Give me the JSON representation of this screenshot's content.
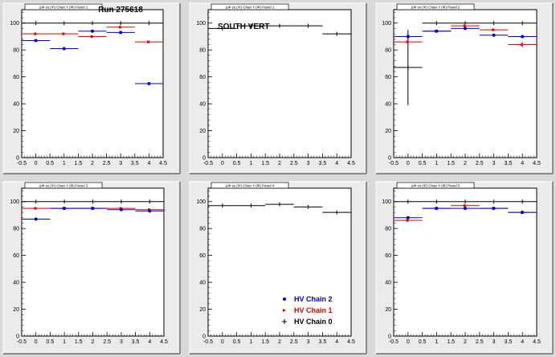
{
  "run_label": "Run 275618",
  "chart_data": [
    {
      "type": "scatter",
      "title": "",
      "header_text": "Run 275618",
      "tab_label": "ΔΦ vs (Ψ) Chan Y (Φ) Panel 1",
      "xlim": [
        -0.5,
        4.5
      ],
      "ylim": [
        0,
        110
      ],
      "xticks": [
        "-0.5",
        "0",
        "0.5",
        "1",
        "1.5",
        "2",
        "2.5",
        "3",
        "3.5",
        "4",
        "4.5"
      ],
      "yticks": [
        "0",
        "20",
        "40",
        "60",
        "80",
        "100"
      ],
      "series": [
        {
          "name": "HV Chain 0",
          "color": "#000000",
          "marker": "plus",
          "points": [
            {
              "x": 0,
              "y": 100,
              "xerr": 0.5,
              "yerr": 0
            },
            {
              "x": 1,
              "y": 100,
              "xerr": 0.5,
              "yerr": 0
            },
            {
              "x": 2,
              "y": 100,
              "xerr": 0.5,
              "yerr": 0
            },
            {
              "x": 3,
              "y": 100,
              "xerr": 0.5,
              "yerr": 0
            },
            {
              "x": 4,
              "y": 100,
              "xerr": 0.5,
              "yerr": 0
            }
          ]
        },
        {
          "name": "HV Chain 1",
          "color": "#e00000",
          "marker": "triangle",
          "points": [
            {
              "x": 0,
              "y": 92,
              "xerr": 0.5,
              "yerr": 1
            },
            {
              "x": 1,
              "y": 92,
              "xerr": 0.5,
              "yerr": 1
            },
            {
              "x": 2,
              "y": 90,
              "xerr": 0.5,
              "yerr": 1
            },
            {
              "x": 3,
              "y": 97,
              "xerr": 0.5,
              "yerr": 1
            },
            {
              "x": 4,
              "y": 86,
              "xerr": 0.5,
              "yerr": 1
            }
          ]
        },
        {
          "name": "HV Chain 2",
          "color": "#0000d0",
          "marker": "circle",
          "points": [
            {
              "x": 0,
              "y": 87,
              "xerr": 0.5,
              "yerr": 1
            },
            {
              "x": 1,
              "y": 81,
              "xerr": 0.5,
              "yerr": 1
            },
            {
              "x": 2,
              "y": 94,
              "xerr": 0.5,
              "yerr": 1
            },
            {
              "x": 3,
              "y": 93,
              "xerr": 0.5,
              "yerr": 1
            },
            {
              "x": 4,
              "y": 55,
              "xerr": 0.5,
              "yerr": 1
            }
          ]
        }
      ]
    },
    {
      "type": "scatter",
      "title": "",
      "header_text": "SOUTH VERT",
      "tab_label": "ΔΦ vs (Ψ) Chan Y (Φ) Panel 1",
      "xlim": [
        -0.5,
        4.5
      ],
      "ylim": [
        0,
        110
      ],
      "xticks": [
        "-0.5",
        "0",
        "0.5",
        "1",
        "1.5",
        "2",
        "2.5",
        "3",
        "3.5",
        "4",
        "4.5"
      ],
      "yticks": [
        "0",
        "20",
        "40",
        "60",
        "80",
        "100"
      ],
      "series": [
        {
          "name": "HV Chain 0",
          "color": "#000000",
          "marker": "plus",
          "points": [
            {
              "x": 0,
              "y": 96,
              "xerr": 0.5,
              "yerr": 0
            },
            {
              "x": 1,
              "y": 98,
              "xerr": 0.5,
              "yerr": 0
            },
            {
              "x": 2,
              "y": 98,
              "xerr": 0.5,
              "yerr": 0
            },
            {
              "x": 3,
              "y": 98,
              "xerr": 0.5,
              "yerr": 0
            },
            {
              "x": 4,
              "y": 92,
              "xerr": 0.5,
              "yerr": 0
            }
          ]
        }
      ]
    },
    {
      "type": "scatter",
      "title": "",
      "header_text": "",
      "tab_label": "ΔΦ vs (Ψ) Chan Y (Φ) Panel 2",
      "xlim": [
        -0.5,
        4.5
      ],
      "ylim": [
        0,
        110
      ],
      "xticks": [
        "-0.5",
        "0",
        "0.5",
        "1",
        "1.5",
        "2",
        "2.5",
        "3",
        "3.5",
        "4",
        "4.5"
      ],
      "yticks": [
        "0",
        "20",
        "40",
        "60",
        "80",
        "100"
      ],
      "series": [
        {
          "name": "HV Chain 0",
          "color": "#000000",
          "marker": "plus",
          "points": [
            {
              "x": 0,
              "y": 67,
              "xerr": 0.5,
              "yerr": 28
            },
            {
              "x": 1,
              "y": 100,
              "xerr": 0.5,
              "yerr": 0
            },
            {
              "x": 2,
              "y": 100,
              "xerr": 0.5,
              "yerr": 0
            },
            {
              "x": 3,
              "y": 100,
              "xerr": 0.5,
              "yerr": 0
            },
            {
              "x": 4,
              "y": 100,
              "xerr": 0.5,
              "yerr": 0
            }
          ]
        },
        {
          "name": "HV Chain 1",
          "color": "#e00000",
          "marker": "triangle",
          "points": [
            {
              "x": 0,
              "y": 86,
              "xerr": 0.5,
              "yerr": 2
            },
            {
              "x": 1,
              "y": 94,
              "xerr": 0.5,
              "yerr": 1
            },
            {
              "x": 2,
              "y": 98,
              "xerr": 0.5,
              "yerr": 1
            },
            {
              "x": 3,
              "y": 95,
              "xerr": 0.5,
              "yerr": 1
            },
            {
              "x": 4,
              "y": 84,
              "xerr": 0.5,
              "yerr": 2
            }
          ]
        },
        {
          "name": "HV Chain 2",
          "color": "#0000d0",
          "marker": "circle",
          "points": [
            {
              "x": 0,
              "y": 90,
              "xerr": 0.5,
              "yerr": 2
            },
            {
              "x": 1,
              "y": 94,
              "xerr": 0.5,
              "yerr": 1
            },
            {
              "x": 2,
              "y": 96,
              "xerr": 0.5,
              "yerr": 1
            },
            {
              "x": 3,
              "y": 91,
              "xerr": 0.5,
              "yerr": 1
            },
            {
              "x": 4,
              "y": 90,
              "xerr": 0.5,
              "yerr": 1
            }
          ]
        }
      ]
    },
    {
      "type": "scatter",
      "title": "",
      "header_text": "",
      "tab_label": "ΔΦ vs (Ψ) Chan Y (Φ) Panel 3",
      "xlim": [
        -0.5,
        4.5
      ],
      "ylim": [
        0,
        110
      ],
      "xticks": [
        "-0.5",
        "0",
        "0.5",
        "1",
        "1.5",
        "2",
        "2.5",
        "3",
        "3.5",
        "4",
        "4.5"
      ],
      "yticks": [
        "0",
        "20",
        "40",
        "60",
        "80",
        "100"
      ],
      "series": [
        {
          "name": "HV Chain 0",
          "color": "#000000",
          "marker": "plus",
          "points": [
            {
              "x": 0,
              "y": 100,
              "xerr": 0.5,
              "yerr": 0
            },
            {
              "x": 1,
              "y": 100,
              "xerr": 0.5,
              "yerr": 0
            },
            {
              "x": 2,
              "y": 100,
              "xerr": 0.5,
              "yerr": 0
            },
            {
              "x": 3,
              "y": 100,
              "xerr": 0.5,
              "yerr": 0
            },
            {
              "x": 4,
              "y": 100,
              "xerr": 0.5,
              "yerr": 0
            }
          ]
        },
        {
          "name": "HV Chain 1",
          "color": "#e00000",
          "marker": "triangle",
          "points": [
            {
              "x": 0,
              "y": 95,
              "xerr": 0.5,
              "yerr": 1
            },
            {
              "x": 1,
              "y": 95,
              "xerr": 0.5,
              "yerr": 1
            },
            {
              "x": 2,
              "y": 95,
              "xerr": 0.5,
              "yerr": 1
            },
            {
              "x": 3,
              "y": 95,
              "xerr": 0.5,
              "yerr": 1
            },
            {
              "x": 4,
              "y": 94,
              "xerr": 0.5,
              "yerr": 1
            }
          ]
        },
        {
          "name": "HV Chain 2",
          "color": "#0000d0",
          "marker": "circle",
          "points": [
            {
              "x": 0,
              "y": 87,
              "xerr": 0.5,
              "yerr": 1
            },
            {
              "x": 1,
              "y": 95,
              "xerr": 0.5,
              "yerr": 1
            },
            {
              "x": 2,
              "y": 95,
              "xerr": 0.5,
              "yerr": 1
            },
            {
              "x": 3,
              "y": 94,
              "xerr": 0.5,
              "yerr": 1
            },
            {
              "x": 4,
              "y": 93,
              "xerr": 0.5,
              "yerr": 1
            }
          ]
        }
      ]
    },
    {
      "type": "scatter",
      "title": "",
      "header_text": "",
      "tab_label": "ΔΦ vs (Ψ) Chan Y (Φ) Panel 4",
      "xlim": [
        -0.5,
        4.5
      ],
      "ylim": [
        0,
        110
      ],
      "xticks": [
        "-0.5",
        "0",
        "0.5",
        "1",
        "1.5",
        "2",
        "2.5",
        "3",
        "3.5",
        "4",
        "4.5"
      ],
      "yticks": [
        "0",
        "20",
        "40",
        "60",
        "80",
        "100"
      ],
      "legend": [
        "HV Chain 2",
        "HV Chain 1",
        "HV Chain 0"
      ],
      "legend_position": "bottom-right",
      "series": [
        {
          "name": "HV Chain 0",
          "color": "#000000",
          "marker": "plus",
          "points": [
            {
              "x": 0,
              "y": 97,
              "xerr": 0.5,
              "yerr": 0
            },
            {
              "x": 1,
              "y": 97,
              "xerr": 0.5,
              "yerr": 0
            },
            {
              "x": 2,
              "y": 98,
              "xerr": 0.5,
              "yerr": 0
            },
            {
              "x": 3,
              "y": 96,
              "xerr": 0.5,
              "yerr": 0
            },
            {
              "x": 4,
              "y": 92,
              "xerr": 0.5,
              "yerr": 0
            }
          ]
        }
      ]
    },
    {
      "type": "scatter",
      "title": "",
      "header_text": "",
      "tab_label": "ΔΦ vs (Ψ) Chan Y (Φ) Panel 5",
      "xlim": [
        -0.5,
        4.5
      ],
      "ylim": [
        0,
        110
      ],
      "xticks": [
        "-0.5",
        "0",
        "0.5",
        "1",
        "1.5",
        "2",
        "2.5",
        "3",
        "3.5",
        "4",
        "4.5"
      ],
      "yticks": [
        "0",
        "20",
        "40",
        "60",
        "80",
        "100"
      ],
      "series": [
        {
          "name": "HV Chain 0",
          "color": "#000000",
          "marker": "plus",
          "points": [
            {
              "x": 0,
              "y": 100,
              "xerr": 0.5,
              "yerr": 0
            },
            {
              "x": 1,
              "y": 100,
              "xerr": 0.5,
              "yerr": 0
            },
            {
              "x": 2,
              "y": 100,
              "xerr": 0.5,
              "yerr": 0
            },
            {
              "x": 3,
              "y": 100,
              "xerr": 0.5,
              "yerr": 0
            },
            {
              "x": 4,
              "y": 100,
              "xerr": 0.5,
              "yerr": 0
            }
          ]
        },
        {
          "name": "HV Chain 1",
          "color": "#e00000",
          "marker": "triangle",
          "points": [
            {
              "x": 0,
              "y": 86,
              "xerr": 0.5,
              "yerr": 1
            },
            {
              "x": 1,
              "y": 95,
              "xerr": 0.5,
              "yerr": 1
            },
            {
              "x": 2,
              "y": 97,
              "xerr": 0.5,
              "yerr": 1
            },
            {
              "x": 3,
              "y": 95,
              "xerr": 0.5,
              "yerr": 1
            },
            {
              "x": 4,
              "y": 92,
              "xerr": 0.5,
              "yerr": 1
            }
          ]
        },
        {
          "name": "HV Chain 2",
          "color": "#0000d0",
          "marker": "circle",
          "points": [
            {
              "x": 0,
              "y": 88,
              "xerr": 0.5,
              "yerr": 1
            },
            {
              "x": 1,
              "y": 95,
              "xerr": 0.5,
              "yerr": 1
            },
            {
              "x": 2,
              "y": 95,
              "xerr": 0.5,
              "yerr": 1
            },
            {
              "x": 3,
              "y": 95,
              "xerr": 0.5,
              "yerr": 1
            },
            {
              "x": 4,
              "y": 92,
              "xerr": 0.5,
              "yerr": 1
            }
          ]
        }
      ]
    }
  ]
}
